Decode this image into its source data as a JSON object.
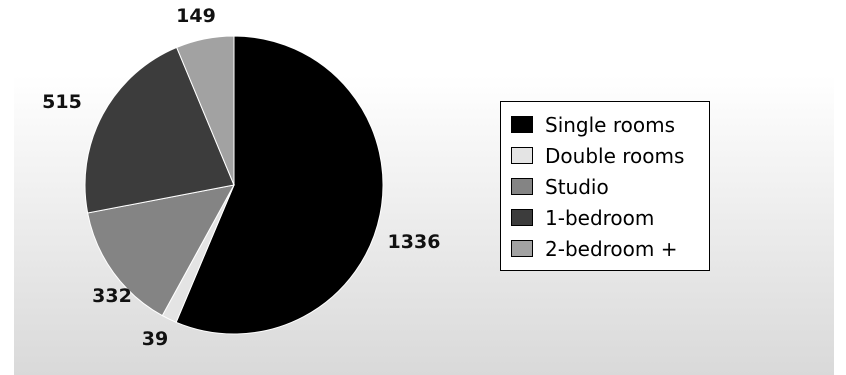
{
  "chart_data": {
    "type": "pie",
    "title": "",
    "categories": [
      "Single rooms",
      "Double rooms",
      "Studio",
      "1-bedroom",
      "2-bedroom +"
    ],
    "values": [
      1336,
      39,
      332,
      515,
      149
    ],
    "colors": [
      "#000000",
      "#e4e4e4",
      "#848484",
      "#3c3c3c",
      "#a2a2a2"
    ],
    "data_labels": [
      "1336",
      "39",
      "332",
      "515",
      "149"
    ],
    "legend": {
      "position": "right",
      "entries": [
        "Single rooms",
        "Double rooms",
        "Studio",
        "1-bedroom",
        "2-bedroom +"
      ]
    },
    "start_angle": "12 o'clock",
    "direction": "clockwise",
    "background": "gradient white to light gray"
  }
}
